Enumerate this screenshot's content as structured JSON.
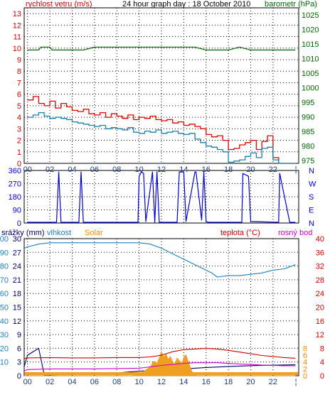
{
  "colors": {
    "wind": "#e00000",
    "gust": "#1a7fa8",
    "pressure": "#006600",
    "direction": "#0000cc",
    "rain": "#000066",
    "humidity": "#1e7fb8",
    "solar": "#f0a020",
    "solar_axis": "#ff8c00",
    "temperature": "#cc0000",
    "dewpoint": "#cc00cc",
    "frame": "#000000",
    "grid": "#000000"
  },
  "chart_data": [
    {
      "type": "line",
      "title": "24 hour graph day : 18 October 2010",
      "left_axis_label": "rychlost vetru (m/s)",
      "right_axis_label": "barometr (hPa)",
      "x_tick_labels": [
        "00",
        "02",
        "04",
        "06",
        "08",
        "10",
        "12",
        "14",
        "16",
        "18",
        "20",
        "22",
        "¦"
      ],
      "y_ticks_left": [
        0,
        1,
        2,
        3,
        4,
        5,
        6,
        7,
        8,
        9,
        10,
        11,
        12,
        13
      ],
      "ylim_left": [
        0,
        13.5
      ],
      "y_ticks_right": [
        975,
        980,
        985,
        990,
        995,
        1000,
        1005,
        1010,
        1015,
        1020,
        1025
      ],
      "ylim_right": [
        974,
        1027.5
      ],
      "series": [
        {
          "key": "wind",
          "color_key": "wind",
          "axis": "left",
          "x": [
            0,
            0.5,
            1,
            1.5,
            2,
            2.5,
            3,
            3.5,
            4,
            4.5,
            5,
            5.5,
            6,
            6.5,
            7,
            7.5,
            8,
            8.5,
            9,
            9.5,
            10,
            10.5,
            11,
            11.5,
            12,
            12.5,
            13,
            13.5,
            14,
            14.5,
            15,
            15.5,
            16,
            16.5,
            17,
            17.5,
            18,
            18.5,
            19,
            19.5,
            20,
            20.5,
            21,
            21.5,
            22,
            22.5,
            23,
            23.5
          ],
          "values": [
            5.5,
            5.8,
            5.2,
            5.0,
            5.4,
            4.8,
            5.2,
            4.9,
            4.6,
            4.5,
            4.7,
            4.3,
            4.2,
            4.4,
            4.0,
            4.3,
            4.1,
            3.9,
            4.2,
            3.8,
            4.0,
            3.9,
            4.1,
            3.8,
            3.7,
            3.8,
            3.5,
            3.6,
            3.3,
            3.4,
            3.2,
            3.0,
            2.5,
            2.3,
            2.4,
            2.0,
            1.2,
            1.3,
            1.6,
            1.8,
            2.0,
            1.2,
            1.9,
            2.4,
            0.5,
            0,
            0,
            0
          ]
        },
        {
          "key": "gust",
          "color_key": "gust",
          "axis": "left",
          "x": [
            0,
            0.5,
            1,
            1.5,
            2,
            2.5,
            3,
            3.5,
            4,
            4.5,
            5,
            5.5,
            6,
            6.5,
            7,
            7.5,
            8,
            8.5,
            9,
            9.5,
            10,
            10.5,
            11,
            11.5,
            12,
            12.5,
            13,
            13.5,
            14,
            14.5,
            15,
            15.5,
            16,
            16.5,
            17,
            17.5,
            18,
            18.5,
            19,
            19.5,
            20,
            20.5,
            21,
            21.5,
            22,
            22.5,
            23,
            23.5
          ],
          "values": [
            4.0,
            4.2,
            4.4,
            4.1,
            3.9,
            4.0,
            3.9,
            3.8,
            3.6,
            3.5,
            3.4,
            3.3,
            3.2,
            3.3,
            3.0,
            3.1,
            3.0,
            2.9,
            3.1,
            2.7,
            2.6,
            2.8,
            2.7,
            2.9,
            2.6,
            2.7,
            2.8,
            2.6,
            2.5,
            2.6,
            2.1,
            1.8,
            1.5,
            1.4,
            1.2,
            1.0,
            0.1,
            0.2,
            0.3,
            0.6,
            0.9,
            0.5,
            1.3,
            1.4,
            0.3,
            0,
            0,
            0
          ]
        },
        {
          "key": "pressure",
          "color_key": "pressure",
          "axis": "right",
          "x": [
            0,
            1,
            1.2,
            2,
            2.2,
            3,
            4,
            5,
            6,
            7,
            8,
            9,
            10,
            11,
            12,
            13,
            14,
            15,
            16,
            17,
            18,
            19,
            20,
            21,
            22,
            23,
            24
          ],
          "values": [
            1013,
            1013,
            1014,
            1014,
            1013,
            1013,
            1013,
            1013,
            1014,
            1014,
            1014,
            1014,
            1014,
            1014,
            1014,
            1014,
            1014,
            1014,
            1013,
            1013,
            1013,
            1014,
            1013,
            1013,
            1013,
            1013,
            1013
          ]
        }
      ]
    },
    {
      "type": "line",
      "y_ticks_left": [
        0,
        90,
        180,
        270,
        360
      ],
      "ylim": [
        0,
        360
      ],
      "right_labels": [
        "N",
        "W",
        "S",
        "E",
        "N"
      ],
      "x_tick_labels": [],
      "series": [
        {
          "key": "direction",
          "color_key": "direction",
          "x": [
            0,
            2.6,
            2.8,
            3.0,
            4.6,
            4.8,
            5.0,
            9.9,
            10.0,
            10.2,
            10.4,
            10.6,
            11.2,
            11.4,
            11.6,
            11.8,
            11.9,
            12.0,
            12.5,
            13.2,
            13.4,
            13.6,
            14.0,
            14.2,
            15.0,
            15.1,
            15.6,
            15.8,
            16.0,
            16.2,
            16.4,
            16.6,
            16.8,
            19.2,
            19.3,
            19.8,
            20.0,
            22.5,
            22.6,
            23.5,
            24
          ],
          "values": [
            5,
            5,
            350,
            5,
            5,
            350,
            5,
            5,
            320,
            350,
            340,
            10,
            350,
            5,
            350,
            5,
            5,
            5,
            5,
            5,
            5,
            350,
            350,
            10,
            350,
            350,
            20,
            350,
            10,
            5,
            5,
            5,
            5,
            5,
            340,
            320,
            10,
            5,
            340,
            5,
            5
          ]
        }
      ]
    },
    {
      "type": "area",
      "left_axis_label": "srážky (mm)",
      "humidity_label": "vlhkost",
      "solar_label": "Solar",
      "temperature_label": "teplota (°C)",
      "dewpoint_label": "rosný bod",
      "x_tick_labels": [
        "00",
        "02",
        "04",
        "06",
        "08",
        "10",
        "12",
        "14",
        "16",
        "18",
        "20",
        "22",
        "¦"
      ],
      "y_ticks_rain": [
        0,
        3,
        6,
        9,
        12,
        15,
        18,
        21,
        24,
        27,
        30
      ],
      "ylim_rain": [
        0,
        30
      ],
      "y_ticks_humidity": [
        10,
        20,
        30,
        40,
        50,
        60,
        70,
        80,
        90,
        100
      ],
      "ylim_humidity": [
        0,
        100
      ],
      "y_ticks_solar": [
        0,
        2,
        4,
        6,
        8
      ],
      "y_ticks_temperature": [
        0,
        4,
        8,
        12,
        16,
        20,
        24,
        28,
        32,
        36,
        40
      ],
      "ylim_temperature": [
        0,
        40
      ],
      "series": [
        {
          "key": "rain",
          "color_key": "rain",
          "x": [
            -0.3,
            0,
            1,
            1.5,
            2,
            4,
            6,
            8,
            10,
            12,
            14,
            16,
            18,
            20,
            22,
            24
          ],
          "values": [
            2.0,
            4.5,
            6.0,
            0.2,
            0.2,
            0.3,
            0.4,
            0.6,
            1.0,
            1.2,
            1.5,
            1.8,
            2.0,
            2.2,
            2.3,
            2.4
          ]
        },
        {
          "key": "humidity",
          "color_key": "humidity",
          "x": [
            -0.3,
            0,
            1,
            2,
            3,
            4,
            5,
            6,
            7,
            8,
            9,
            10,
            11,
            12,
            12.5,
            13,
            13.5,
            14,
            14.5,
            15,
            15.5,
            16,
            16.5,
            17,
            18,
            19,
            20,
            21,
            22,
            23,
            24
          ],
          "values": [
            93,
            94,
            96,
            97,
            97,
            97,
            97,
            97,
            97,
            97,
            97,
            97,
            96,
            93,
            91,
            89,
            87,
            85,
            83,
            81,
            79,
            77,
            75,
            72,
            73,
            73,
            74,
            75,
            77,
            78,
            81
          ]
        },
        {
          "key": "solar",
          "color_key": "solar",
          "fill": true,
          "x": [
            -0.3,
            9,
            10,
            10.5,
            11,
            11.3,
            11.6,
            11.8,
            12,
            12.2,
            12.4,
            12.6,
            12.8,
            13,
            13.2,
            13.4,
            13.6,
            13.8,
            14,
            14.2,
            14.4,
            14.6,
            14.8,
            15,
            15.3,
            16,
            24
          ],
          "values": [
            0,
            0,
            0.2,
            1.5,
            2.6,
            4.2,
            3.6,
            5.2,
            7.1,
            5.4,
            6.3,
            4.8,
            5.6,
            4.1,
            3.2,
            5.2,
            4.4,
            3.1,
            5.4,
            6.1,
            4.2,
            2.3,
            0.8,
            0.2,
            0,
            0,
            0
          ]
        },
        {
          "key": "temperature",
          "color_key": "temperature",
          "x": [
            -0.3,
            0,
            2,
            4,
            6,
            8,
            10,
            11,
            12,
            13,
            14,
            15,
            16,
            17,
            18,
            19,
            20,
            21,
            22,
            23,
            24
          ],
          "values": [
            5,
            5.2,
            5.3,
            5.2,
            5.2,
            5.3,
            5.3,
            5.5,
            6.0,
            7.0,
            7.6,
            7.8,
            8.0,
            7.8,
            7.4,
            6.9,
            6.4,
            5.9,
            5.6,
            5.3,
            5.1
          ]
        },
        {
          "key": "dewpoint",
          "color_key": "dewpoint",
          "x": [
            -0.3,
            0,
            2,
            4,
            6,
            8,
            10,
            11,
            12,
            13,
            14,
            15,
            16,
            17,
            18,
            19,
            20,
            21,
            22,
            23,
            24
          ],
          "values": [
            1.4,
            1.8,
            2.0,
            2.0,
            2.0,
            2.1,
            2.2,
            2.6,
            3.0,
            3.3,
            3.6,
            3.8,
            3.8,
            3.8,
            3.6,
            3.4,
            3.3,
            3.1,
            3.0,
            2.9,
            2.9
          ]
        }
      ]
    }
  ]
}
